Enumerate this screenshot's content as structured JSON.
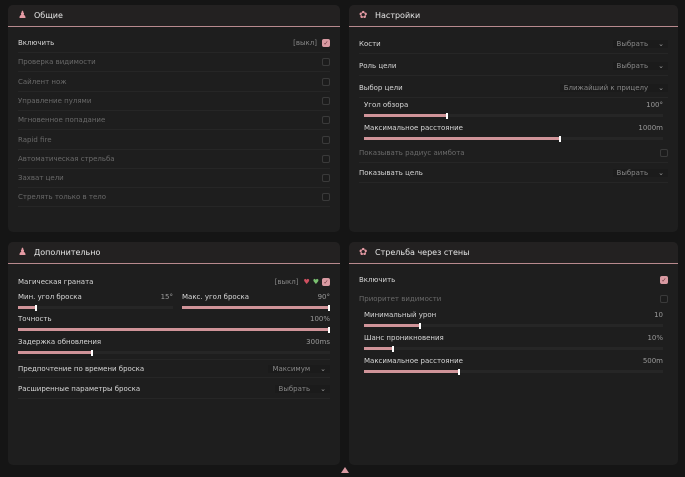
{
  "general": {
    "title": "Общие",
    "icon": "character-icon",
    "items": [
      {
        "label": "Включить",
        "tag": "[выкл]",
        "checked": true,
        "disabled": false
      },
      {
        "label": "Проверка видимости",
        "checked": false,
        "disabled": true
      },
      {
        "label": "Сайлент нож",
        "checked": false,
        "disabled": true
      },
      {
        "label": "Управление пулями",
        "checked": false,
        "disabled": true
      },
      {
        "label": "Мгновенное попадание",
        "checked": false,
        "disabled": true
      },
      {
        "label": "Rapid fire",
        "checked": false,
        "disabled": true
      },
      {
        "label": "Автоматическая стрельба",
        "checked": false,
        "disabled": true
      },
      {
        "label": "Захват цели",
        "checked": false,
        "disabled": true
      },
      {
        "label": "Стрелять только в тело",
        "checked": false,
        "disabled": true
      }
    ]
  },
  "settings": {
    "title": "Настройки",
    "icon": "gear-icon",
    "bones": {
      "label": "Кости",
      "value": "Выбрать"
    },
    "target_role": {
      "label": "Роль цели",
      "value": "Выбрать"
    },
    "target_select": {
      "label": "Выбор цели",
      "value": "Ближайший к прицелу"
    },
    "fov": {
      "label": "Угол обзора",
      "value": "100°",
      "fraction": 0.28
    },
    "max_distance": {
      "label": "Максимальное расстояние",
      "value": "1000m",
      "fraction": 0.66
    },
    "show_radius": {
      "label": "Показывать радиус аимбота",
      "checked": false
    },
    "show_target": {
      "label": "Показывать цель",
      "value": "Выбрать"
    }
  },
  "extra": {
    "title": "Дополнительно",
    "icon": "character-icon",
    "grenade": {
      "label": "Магическая граната",
      "tag": "[выкл]",
      "checked": true
    },
    "min_angle": {
      "label": "Мин. угол броска",
      "value": "15°",
      "fraction": 0.12
    },
    "max_angle": {
      "label": "Макс. угол броска",
      "value": "90°",
      "fraction": 1.0
    },
    "accuracy": {
      "label": "Точность",
      "value": "100%",
      "fraction": 1.0
    },
    "delay": {
      "label": "Задержка обновления",
      "value": "300ms",
      "fraction": 0.24
    },
    "time_pref": {
      "label": "Предпочтение по времени броска",
      "value": "Максимум"
    },
    "advanced": {
      "label": "Расширенные параметры броска",
      "value": "Выбрать"
    }
  },
  "wallbang": {
    "title": "Стрельба через стены",
    "icon": "gear-icon",
    "enable": {
      "label": "Включить",
      "checked": true
    },
    "priority": {
      "label": "Приоритет видимости",
      "checked": false
    },
    "min_damage": {
      "label": "Минимальный урон",
      "value": "10",
      "fraction": 0.19
    },
    "penetration": {
      "label": "Шанс проникновения",
      "value": "10%",
      "fraction": 0.1
    },
    "max_distance": {
      "label": "Максимальное расстояние",
      "value": "500m",
      "fraction": 0.32
    }
  },
  "accent": "#d99aa2"
}
